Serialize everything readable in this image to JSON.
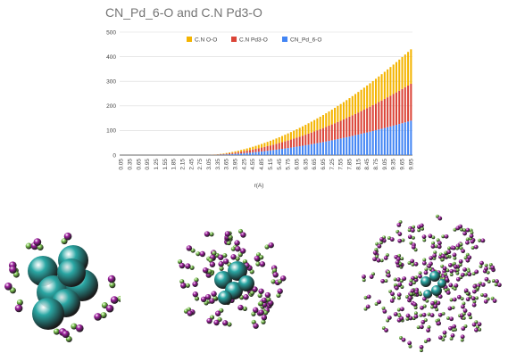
{
  "chart_data": {
    "type": "bar",
    "stacked": true,
    "title": "CN_Pd_6-O and C.N Pd3-O",
    "xlabel": "r(A)",
    "ylabel": "",
    "ylim": [
      0,
      500
    ],
    "yticks": [
      0,
      100,
      200,
      300,
      400,
      500
    ],
    "grid": true,
    "legend_position": "top-center",
    "x_start": 0.05,
    "x_step": 0.1,
    "x_count": 100,
    "x_tick_labels": [
      "0.05",
      "0.35",
      "0.65",
      "0.95",
      "1.25",
      "1.55",
      "1.85",
      "2.15",
      "2.45",
      "2.75",
      "3.05",
      "3.35",
      "3.65",
      "3.95",
      "4.25",
      "4.55",
      "4.85",
      "5.15",
      "5.45",
      "5.75",
      "6.05",
      "6.35",
      "6.65",
      "6.95",
      "7.25",
      "7.55",
      "7.85",
      "8.15",
      "8.45",
      "8.75",
      "9.05",
      "9.35",
      "9.65",
      "9.95"
    ],
    "series": [
      {
        "name": "C.N O-O",
        "color": "#f4b400",
        "onset": 2.9,
        "end_value": 140
      },
      {
        "name": "C.N Pd3-O",
        "color": "#db4437",
        "onset": 2.9,
        "end_value": 150
      },
      {
        "name": "CN_Pd_6-O",
        "color": "#4285f4",
        "onset": 2.9,
        "end_value": 140
      }
    ]
  },
  "images": [
    {
      "name": "small-cluster",
      "pd_color": "#2aa7a4",
      "o_color": "#a020a0",
      "h_color": "#7ec850"
    },
    {
      "name": "medium-cluster",
      "pd_color": "#2aa7a4",
      "o_color": "#a020a0",
      "h_color": "#7ec850"
    },
    {
      "name": "large-cluster",
      "pd_color": "#2aa7a4",
      "o_color": "#a020a0",
      "h_color": "#7ec850"
    }
  ]
}
